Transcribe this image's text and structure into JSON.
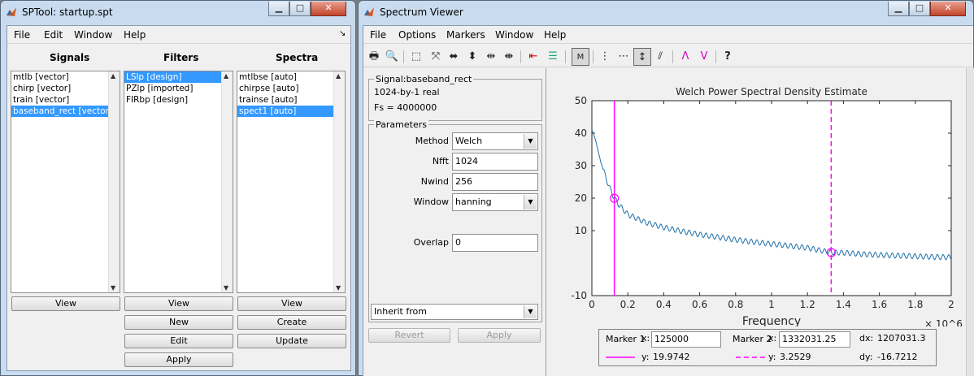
{
  "sptool": {
    "title": "SPTool: startup.spt",
    "menu": [
      "File",
      "Edit",
      "Window",
      "Help"
    ],
    "menu_arrow": "↘",
    "signals": {
      "header": "Signals",
      "items": [
        "mtlb [vector]",
        "chirp [vector]",
        "train [vector]",
        "baseband_rect [vector]"
      ],
      "selected": 3
    },
    "filters": {
      "header": "Filters",
      "items": [
        "LSlp [design]",
        "PZlp [imported]",
        "FIRbp [design]"
      ],
      "selected": 0
    },
    "spectra": {
      "header": "Spectra",
      "items": [
        "mtlbse [auto]",
        "chirpse [auto]",
        "trainse [auto]",
        "spect1 [auto]"
      ],
      "selected": 3
    },
    "buttons": {
      "signals_view": "View",
      "filters_view": "View",
      "filters_new": "New",
      "filters_edit": "Edit",
      "filters_apply": "Apply",
      "spectra_view": "View",
      "spectra_create": "Create",
      "spectra_update": "Update"
    }
  },
  "viewer": {
    "title": "Spectrum Viewer",
    "menu": [
      "File",
      "Options",
      "Markers",
      "Window",
      "Help"
    ],
    "signal_group": {
      "title": "Signal:baseband_rect",
      "line1": "1024-by-1 real",
      "line2": "Fs = 4000000"
    },
    "params": {
      "title": "Parameters",
      "method_label": "Method",
      "method_value": "Welch",
      "nfft_label": "Nfft",
      "nfft_value": "1024",
      "nwind_label": "Nwind",
      "nwind_value": "256",
      "window_label": "Window",
      "window_value": "hanning",
      "overlap_label": "Overlap",
      "overlap_value": "0",
      "inherit_value": "Inherit from"
    },
    "buttons": {
      "revert": "Revert",
      "apply": "Apply"
    },
    "markers": {
      "m1_label": "Marker 1",
      "m1_x_label": "x:",
      "m1_x": "125000",
      "m1_y_label": "y:",
      "m1_y": "19.9742",
      "m2_label": "Marker 2",
      "m2_x_label": "x:",
      "m2_x": "1332031.25",
      "m2_y_label": "y:",
      "m2_y": "3.2529",
      "dx_label": "dx:",
      "dx": "1207031.3",
      "dy_label": "dy:",
      "dy": "-16.7212",
      "m1_color": "#ff00ff",
      "m2_color": "#ff00ff"
    },
    "toolbar_icons": [
      "print-icon",
      "print-preview-icon",
      "zoom-box-icon",
      "zoom-out-full-icon",
      "zoom-x-icon",
      "zoom-y-icon",
      "zoom-in-x-icon",
      "zoom-out-x-icon",
      "line-display-icon",
      "spectrum-legend-icon",
      "mouse-zoom-icon",
      "marker-vertical-icon",
      "marker-horizontal-icon",
      "marker-track-icon",
      "marker-slope-icon",
      "peaks-icon",
      "valleys-icon",
      "whats-this-icon"
    ]
  },
  "chart_data": {
    "type": "line",
    "title": "Welch Power Spectral Density Estimate",
    "xlabel": "Frequency",
    "x_exponent": "× 10^6",
    "ylabel": "",
    "xlim": [
      0,
      2
    ],
    "ylim": [
      -10,
      50
    ],
    "xticks": [
      "0",
      "0.2",
      "0.4",
      "0.6",
      "0.8",
      "1",
      "1.2",
      "1.4",
      "1.6",
      "1.8",
      "2"
    ],
    "yticks": [
      "50",
      "40",
      "30",
      "20",
      "10",
      "-10"
    ],
    "ytick_values": [
      50,
      40,
      30,
      20,
      10,
      -10
    ],
    "series": [
      {
        "color": "#1f6fa8",
        "x": [
          0,
          0.02,
          0.05,
          0.08,
          0.1,
          0.125,
          0.15,
          0.2,
          0.3,
          0.4,
          0.5,
          0.6,
          0.7,
          0.8,
          0.9,
          1.0,
          1.1,
          1.2,
          1.3,
          1.332,
          1.4,
          1.5,
          1.6,
          1.7,
          1.8,
          1.9,
          2.0
        ],
        "y": [
          41,
          38,
          31,
          26,
          23,
          19.97,
          18,
          15,
          12.5,
          11,
          9.8,
          8.8,
          8,
          7.2,
          6.5,
          5.9,
          5.3,
          4.7,
          3.6,
          3.25,
          3.2,
          2.8,
          2.5,
          2.3,
          2.1,
          1.9,
          1.8
        ]
      }
    ],
    "markers": [
      {
        "name": "Marker 1",
        "x": 0.125,
        "y": 19.97,
        "style": "solid",
        "color": "#ff00ff"
      },
      {
        "name": "Marker 2",
        "x": 1.332,
        "y": 3.25,
        "style": "dashed",
        "color": "#ff00ff"
      }
    ],
    "grid": false
  }
}
